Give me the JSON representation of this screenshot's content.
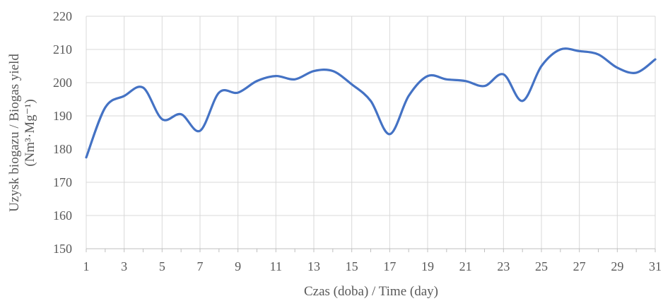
{
  "chart_data": {
    "type": "line",
    "title": "",
    "xlabel": "Czas (doba) / Time (day)",
    "ylabel_line1": "Uzysk biogazu / Biogas yield",
    "ylabel_line2": "(Nm³·Mg⁻¹)",
    "ylim": [
      150,
      220
    ],
    "yticks": [
      "150",
      "160",
      "170",
      "180",
      "190",
      "200",
      "210",
      "220"
    ],
    "xlim": [
      1,
      31
    ],
    "xticks": [
      "1",
      "3",
      "5",
      "7",
      "9",
      "11",
      "13",
      "15",
      "17",
      "19",
      "21",
      "23",
      "25",
      "27",
      "29",
      "31"
    ],
    "grid": true,
    "legend": "none",
    "series": [
      {
        "color": "#4472c4",
        "x": [
          1,
          2,
          3,
          4,
          5,
          6,
          7,
          8,
          9,
          10,
          11,
          12,
          13,
          14,
          15,
          16,
          17,
          18,
          19,
          20,
          21,
          22,
          23,
          24,
          25,
          26,
          27,
          28,
          29,
          30,
          31
        ],
        "values": [
          177.5,
          192.5,
          196,
          198.5,
          189,
          190.5,
          185.5,
          197,
          197,
          200.5,
          202,
          201,
          203.5,
          203.5,
          199.5,
          194.5,
          184.5,
          196,
          202,
          201,
          200.5,
          199,
          202.5,
          194.5,
          205,
          210,
          209.5,
          208.5,
          204.5,
          203,
          207
        ]
      }
    ]
  }
}
